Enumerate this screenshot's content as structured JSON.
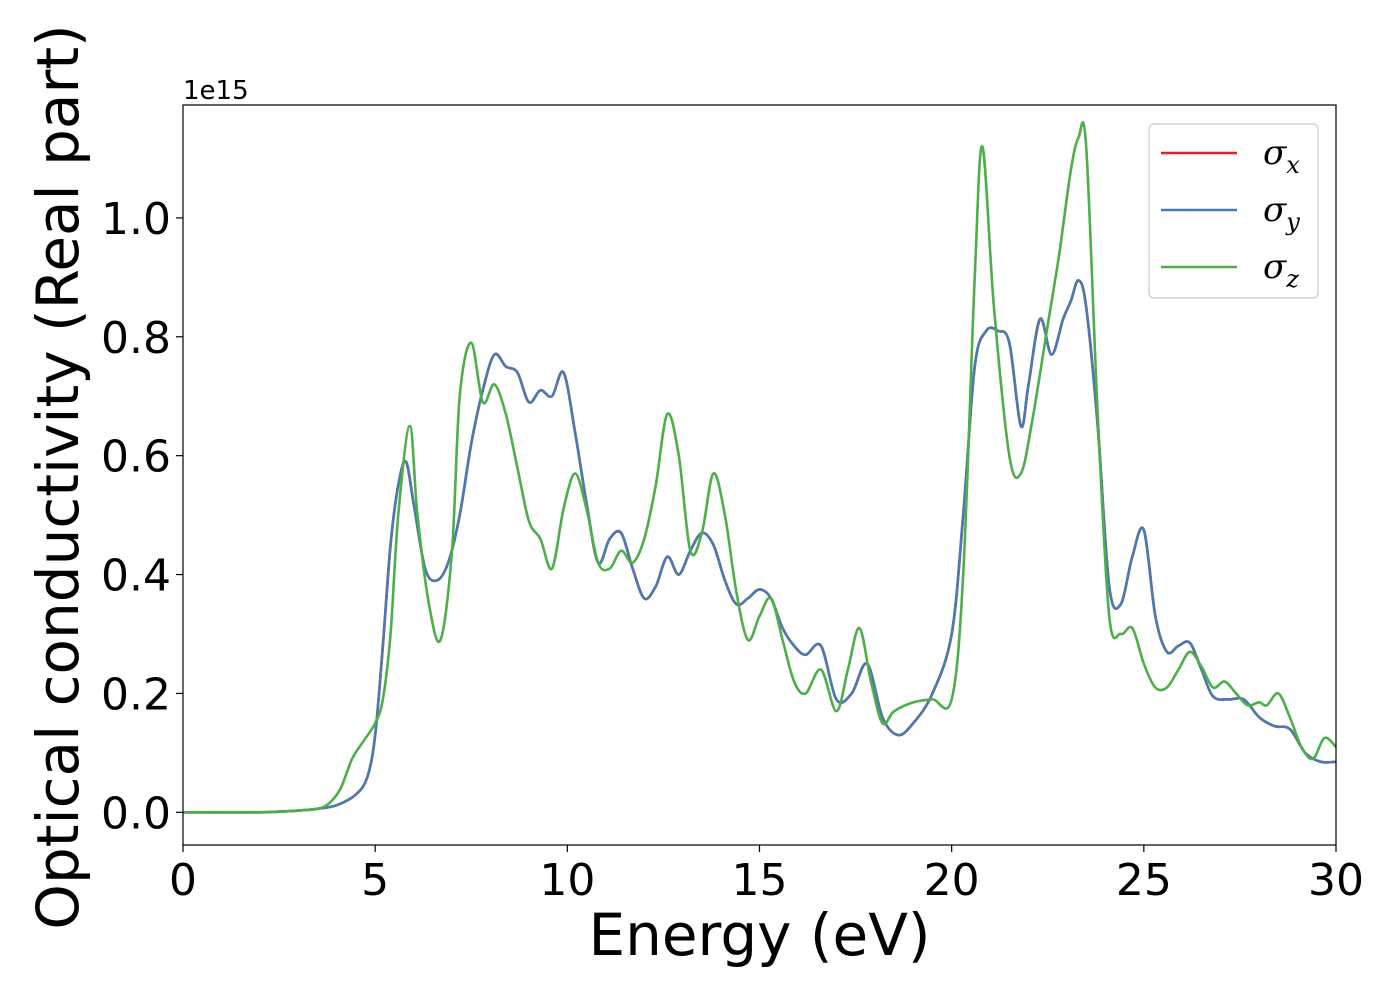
{
  "chart_data": {
    "type": "line",
    "xlabel": "Energy (eV)",
    "ylabel": "Optical conductivity (Real part)",
    "offset_text": "1e15",
    "xlim": [
      0,
      30
    ],
    "ylim": [
      -0.055,
      1.19
    ],
    "x_ticks": [
      0,
      5,
      10,
      15,
      20,
      25,
      30
    ],
    "x_tick_labels": [
      "0",
      "5",
      "10",
      "15",
      "20",
      "25",
      "30"
    ],
    "y_ticks": [
      0.0,
      0.2,
      0.4,
      0.6,
      0.8,
      1.0
    ],
    "y_tick_labels": [
      "0.0",
      "0.2",
      "0.4",
      "0.6",
      "0.8",
      "1.0"
    ],
    "grid": false,
    "legend_position": "top-right",
    "series": [
      {
        "name": "σ",
        "subscript": "x",
        "color": "#d62728",
        "x": [
          0,
          2,
          3,
          3.5,
          4,
          4.5,
          4.8,
          5.0,
          5.2,
          5.4,
          5.6,
          5.8,
          6.0,
          6.3,
          6.6,
          6.9,
          7.2,
          7.5,
          7.8,
          8.1,
          8.4,
          8.7,
          9.0,
          9.3,
          9.6,
          9.9,
          10.2,
          10.5,
          10.8,
          11.1,
          11.4,
          11.7,
          12.0,
          12.3,
          12.6,
          12.9,
          13.2,
          13.5,
          13.8,
          14.1,
          14.4,
          14.7,
          15.0,
          15.3,
          15.6,
          15.9,
          16.2,
          16.6,
          17.0,
          17.4,
          17.8,
          18.2,
          18.6,
          19.0,
          19.5,
          20.0,
          20.3,
          20.6,
          20.9,
          21.2,
          21.5,
          21.8,
          22.0,
          22.3,
          22.6,
          22.9,
          23.1,
          23.3,
          23.5,
          23.8,
          24.1,
          24.4,
          24.7,
          25.0,
          25.3,
          25.6,
          25.9,
          26.2,
          26.5,
          26.8,
          27.2,
          27.6,
          28.0,
          28.4,
          28.8,
          29.2,
          29.6,
          30.0
        ],
        "values": [
          0.0,
          0.0,
          0.003,
          0.006,
          0.012,
          0.03,
          0.06,
          0.13,
          0.28,
          0.45,
          0.55,
          0.59,
          0.52,
          0.41,
          0.39,
          0.42,
          0.5,
          0.62,
          0.71,
          0.77,
          0.75,
          0.74,
          0.69,
          0.71,
          0.7,
          0.74,
          0.64,
          0.52,
          0.42,
          0.46,
          0.47,
          0.41,
          0.36,
          0.38,
          0.43,
          0.4,
          0.44,
          0.47,
          0.45,
          0.39,
          0.35,
          0.36,
          0.375,
          0.36,
          0.31,
          0.28,
          0.265,
          0.28,
          0.19,
          0.2,
          0.25,
          0.16,
          0.13,
          0.15,
          0.2,
          0.3,
          0.5,
          0.75,
          0.81,
          0.81,
          0.79,
          0.65,
          0.72,
          0.83,
          0.77,
          0.83,
          0.86,
          0.895,
          0.85,
          0.65,
          0.38,
          0.35,
          0.43,
          0.475,
          0.33,
          0.27,
          0.28,
          0.285,
          0.24,
          0.195,
          0.19,
          0.19,
          0.16,
          0.145,
          0.14,
          0.1,
          0.085,
          0.085
        ]
      },
      {
        "name": "σ",
        "subscript": "y",
        "color": "#4a7ab2",
        "x": [
          0,
          2,
          3,
          3.5,
          4,
          4.5,
          4.8,
          5.0,
          5.2,
          5.4,
          5.6,
          5.8,
          6.0,
          6.3,
          6.6,
          6.9,
          7.2,
          7.5,
          7.8,
          8.1,
          8.4,
          8.7,
          9.0,
          9.3,
          9.6,
          9.9,
          10.2,
          10.5,
          10.8,
          11.1,
          11.4,
          11.7,
          12.0,
          12.3,
          12.6,
          12.9,
          13.2,
          13.5,
          13.8,
          14.1,
          14.4,
          14.7,
          15.0,
          15.3,
          15.6,
          15.9,
          16.2,
          16.6,
          17.0,
          17.4,
          17.8,
          18.2,
          18.6,
          19.0,
          19.5,
          20.0,
          20.3,
          20.6,
          20.9,
          21.2,
          21.5,
          21.8,
          22.0,
          22.3,
          22.6,
          22.9,
          23.1,
          23.3,
          23.5,
          23.8,
          24.1,
          24.4,
          24.7,
          25.0,
          25.3,
          25.6,
          25.9,
          26.2,
          26.5,
          26.8,
          27.2,
          27.6,
          28.0,
          28.4,
          28.8,
          29.2,
          29.6,
          30.0
        ],
        "values": [
          0.0,
          0.0,
          0.003,
          0.006,
          0.012,
          0.03,
          0.06,
          0.13,
          0.28,
          0.45,
          0.55,
          0.59,
          0.52,
          0.41,
          0.39,
          0.42,
          0.5,
          0.62,
          0.71,
          0.77,
          0.75,
          0.74,
          0.69,
          0.71,
          0.7,
          0.74,
          0.64,
          0.52,
          0.42,
          0.46,
          0.47,
          0.41,
          0.36,
          0.38,
          0.43,
          0.4,
          0.44,
          0.47,
          0.45,
          0.39,
          0.35,
          0.36,
          0.375,
          0.36,
          0.31,
          0.28,
          0.265,
          0.28,
          0.19,
          0.2,
          0.25,
          0.16,
          0.13,
          0.15,
          0.2,
          0.3,
          0.5,
          0.75,
          0.81,
          0.81,
          0.79,
          0.65,
          0.72,
          0.83,
          0.77,
          0.83,
          0.86,
          0.895,
          0.85,
          0.65,
          0.38,
          0.35,
          0.43,
          0.475,
          0.33,
          0.27,
          0.28,
          0.285,
          0.24,
          0.195,
          0.19,
          0.19,
          0.16,
          0.145,
          0.14,
          0.1,
          0.085,
          0.085
        ]
      },
      {
        "name": "σ",
        "subscript": "z",
        "color": "#4daf4a",
        "x": [
          0,
          2,
          3,
          3.5,
          3.8,
          4.1,
          4.4,
          4.7,
          5.0,
          5.2,
          5.4,
          5.6,
          5.9,
          6.1,
          6.4,
          6.7,
          7.0,
          7.2,
          7.5,
          7.8,
          8.1,
          8.4,
          8.7,
          9.0,
          9.3,
          9.6,
          9.9,
          10.2,
          10.5,
          10.8,
          11.1,
          11.4,
          11.7,
          12.0,
          12.3,
          12.6,
          12.9,
          13.2,
          13.5,
          13.8,
          14.1,
          14.4,
          14.7,
          15.0,
          15.3,
          15.6,
          15.9,
          16.2,
          16.6,
          17.0,
          17.3,
          17.6,
          17.9,
          18.2,
          18.5,
          19.0,
          19.5,
          20.0,
          20.3,
          20.6,
          20.8,
          21.1,
          21.5,
          21.8,
          22.1,
          22.5,
          22.8,
          23.1,
          23.3,
          23.5,
          23.8,
          24.1,
          24.4,
          24.7,
          25.0,
          25.3,
          25.6,
          25.9,
          26.2,
          26.5,
          26.8,
          27.1,
          27.4,
          27.7,
          28.0,
          28.2,
          28.5,
          28.8,
          29.1,
          29.4,
          29.7,
          30.0
        ],
        "values": [
          0.0,
          0.0,
          0.003,
          0.006,
          0.015,
          0.04,
          0.09,
          0.12,
          0.15,
          0.19,
          0.3,
          0.5,
          0.65,
          0.5,
          0.35,
          0.29,
          0.44,
          0.7,
          0.79,
          0.69,
          0.72,
          0.67,
          0.58,
          0.49,
          0.46,
          0.41,
          0.51,
          0.57,
          0.51,
          0.42,
          0.41,
          0.44,
          0.42,
          0.46,
          0.55,
          0.67,
          0.6,
          0.44,
          0.47,
          0.57,
          0.5,
          0.37,
          0.29,
          0.33,
          0.36,
          0.29,
          0.22,
          0.2,
          0.24,
          0.17,
          0.24,
          0.31,
          0.22,
          0.15,
          0.17,
          0.185,
          0.19,
          0.19,
          0.4,
          0.9,
          1.12,
          0.85,
          0.6,
          0.57,
          0.66,
          0.82,
          0.94,
          1.08,
          1.135,
          1.12,
          0.67,
          0.33,
          0.3,
          0.31,
          0.25,
          0.21,
          0.21,
          0.24,
          0.27,
          0.245,
          0.21,
          0.22,
          0.2,
          0.18,
          0.185,
          0.18,
          0.2,
          0.16,
          0.11,
          0.09,
          0.125,
          0.11
        ]
      }
    ]
  }
}
